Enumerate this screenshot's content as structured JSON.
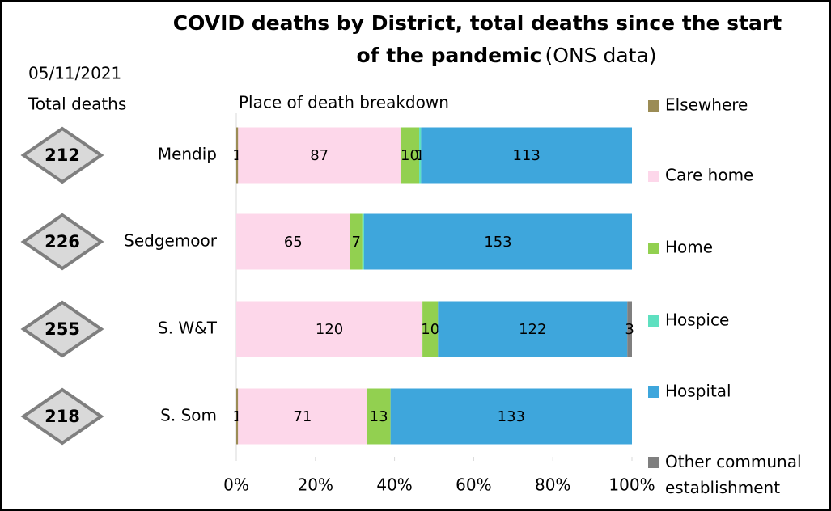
{
  "chart_data": {
    "type": "stacked_bar_100",
    "title": "COVID deaths by District, total deaths since the start of the pandemic",
    "title_note": "(ONS data)",
    "date": "05/11/2021",
    "totals_label": "Total deaths",
    "subtitle": "Place of death breakdown",
    "categories": [
      "Mendip",
      "Sedgemoor",
      "S. W&T",
      "S. Som"
    ],
    "totals": [
      212,
      226,
      255,
      218
    ],
    "series": [
      {
        "name": "Elsewhere",
        "color": "#9b8c55",
        "values": [
          1,
          0,
          0,
          1
        ],
        "value_labels": [
          "1",
          null,
          null,
          "1"
        ]
      },
      {
        "name": "Care home",
        "color": "#fdd7ea",
        "values": [
          87,
          65,
          120,
          71
        ],
        "value_labels": [
          "87",
          "65",
          "120",
          "71"
        ]
      },
      {
        "name": "Home",
        "color": "#92d050",
        "values": [
          10,
          7,
          10,
          13
        ],
        "value_labels": [
          "10",
          "7",
          "10",
          "13"
        ]
      },
      {
        "name": "Hospice",
        "color": "#5ee0c0",
        "values": [
          1,
          1,
          0,
          0
        ],
        "value_labels": [
          "1",
          null,
          null,
          null
        ]
      },
      {
        "name": "Hospital",
        "color": "#3ea6dc",
        "values": [
          113,
          153,
          122,
          133
        ],
        "value_labels": [
          "113",
          "153",
          "122",
          "133"
        ]
      },
      {
        "name": "Other communal establishment",
        "color": "#7f7f7f",
        "values": [
          0,
          0,
          3,
          0
        ],
        "value_labels": [
          null,
          null,
          "3",
          null
        ]
      }
    ],
    "xlim": [
      0,
      100
    ],
    "xticks": [
      {
        "value": 0,
        "label": "0%"
      },
      {
        "value": 20,
        "label": "20%"
      },
      {
        "value": 40,
        "label": "40%"
      },
      {
        "value": 60,
        "label": "60%"
      },
      {
        "value": 80,
        "label": "80%"
      },
      {
        "value": 100,
        "label": "100%"
      }
    ]
  }
}
